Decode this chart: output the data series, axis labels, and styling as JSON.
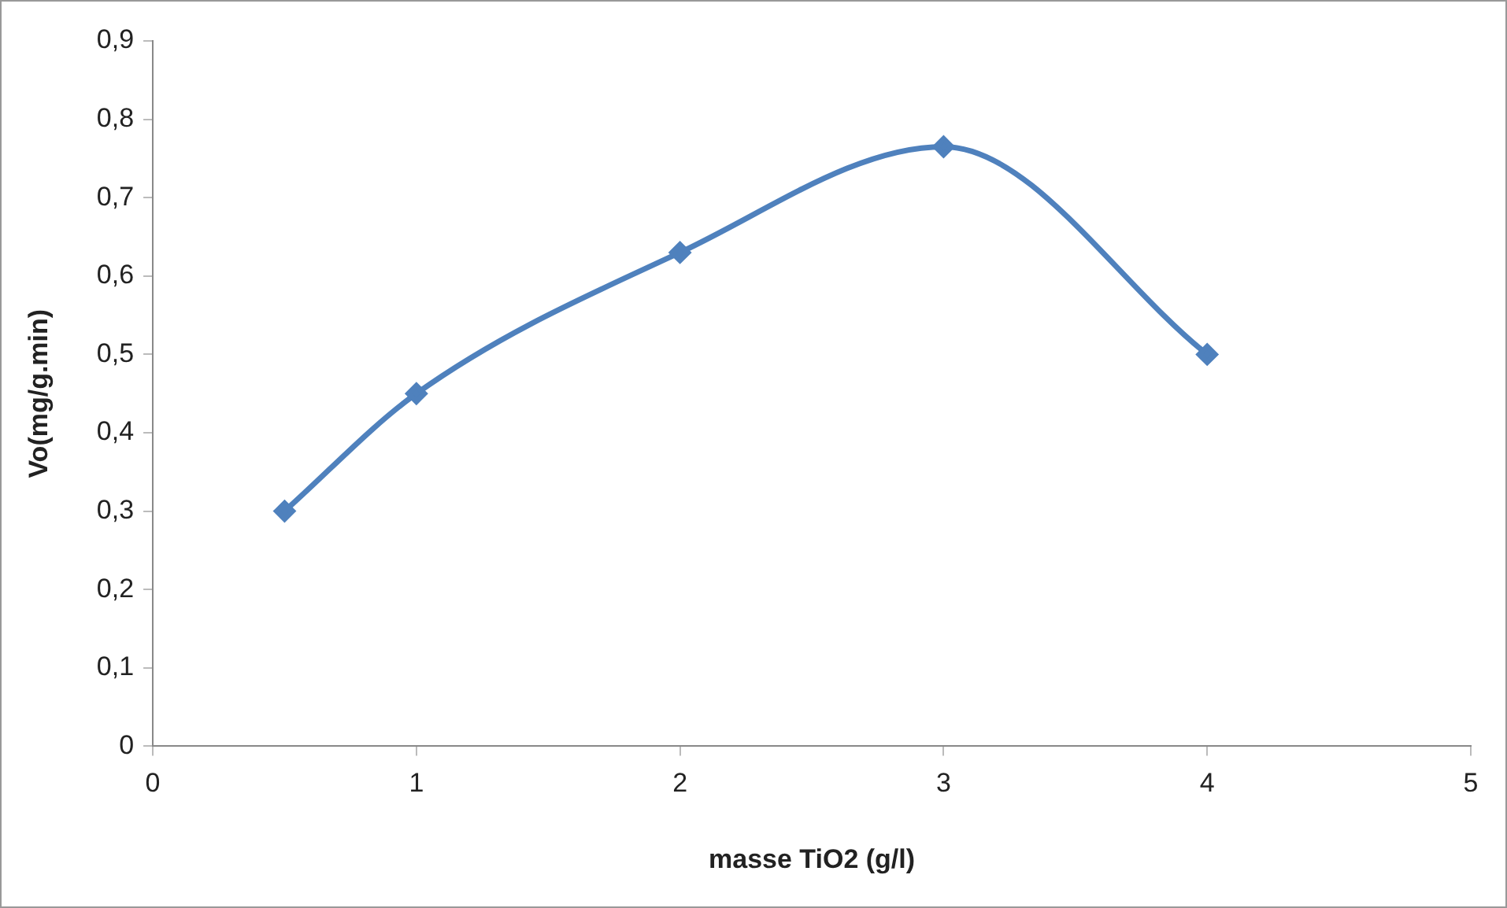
{
  "chart_data": {
    "type": "line",
    "xlabel": "masse TiO2 (g/l)",
    "ylabel": "Vo(mg/g.min)",
    "x": [
      0.5,
      1,
      2,
      3,
      4
    ],
    "series": [
      {
        "color": "#4f81bd",
        "values": [
          0.3,
          0.45,
          0.63,
          0.765,
          0.5
        ]
      }
    ],
    "xlim": [
      0,
      5
    ],
    "xticks": [
      0,
      1,
      2,
      3,
      4,
      5
    ],
    "ylim": [
      0,
      0.9
    ],
    "yticks": [
      {
        "value": 0,
        "label": "0"
      },
      {
        "value": 0.1,
        "label": "0,1"
      },
      {
        "value": 0.2,
        "label": "0,2"
      },
      {
        "value": 0.3,
        "label": "0,3"
      },
      {
        "value": 0.4,
        "label": "0,4"
      },
      {
        "value": 0.5,
        "label": "0,5"
      },
      {
        "value": 0.6,
        "label": "0,6"
      },
      {
        "value": 0.7,
        "label": "0,7"
      },
      {
        "value": 0.8,
        "label": "0,8"
      },
      {
        "value": 0.9,
        "label": "0,9"
      }
    ],
    "grid": false,
    "legend": false,
    "marker": "diamond",
    "line_style": "solid"
  }
}
